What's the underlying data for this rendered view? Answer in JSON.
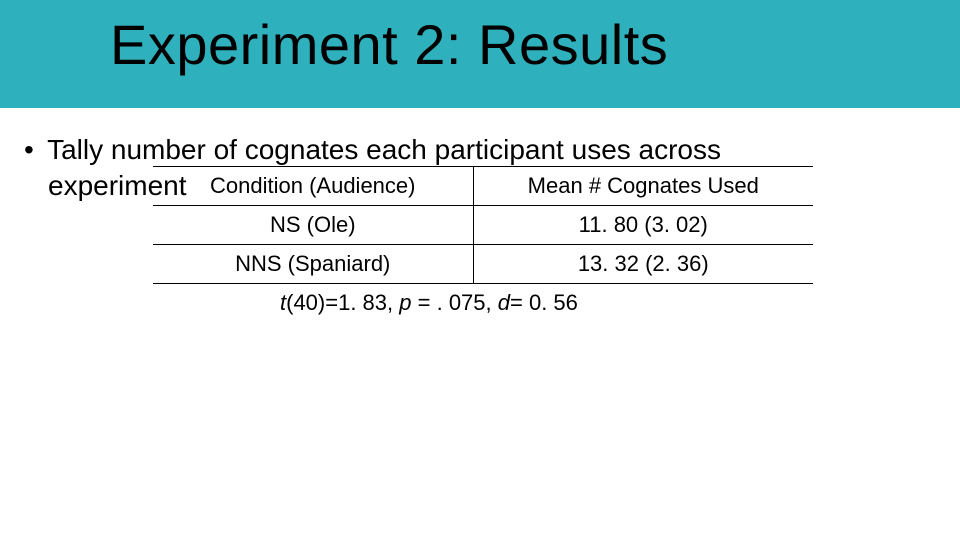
{
  "header": {
    "title": "Experiment 2: Results",
    "band_color": "#2eb0bd"
  },
  "bullet": {
    "line1": "Tally number of cognates each participant uses across",
    "line2": "experiment"
  },
  "table": {
    "header": {
      "col1": "Condition (Audience)",
      "col2": "Mean # Cognates Used"
    },
    "rows": [
      {
        "col1": "NS (Ole)",
        "col2": "11. 80 (3. 02)"
      },
      {
        "col1": "NNS (Spaniard)",
        "col2": "13. 32 (2. 36)"
      }
    ]
  },
  "stats": {
    "t_label": "t",
    "t_df_eq": "(40)=1. 83, ",
    "p_label": "p",
    "p_eq": " = . 075, ",
    "d_label": "d",
    "d_eq": "= 0. 56"
  }
}
